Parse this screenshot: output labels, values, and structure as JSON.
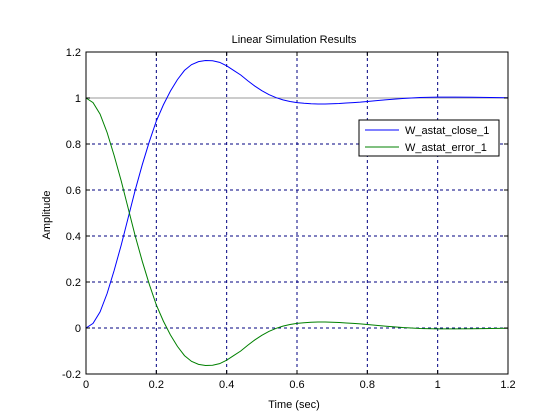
{
  "chart_data": {
    "type": "line",
    "title": "Linear Simulation Results",
    "xlabel": "Time (sec)",
    "ylabel": "Amplitude",
    "xlim": [
      0,
      1.2
    ],
    "ylim": [
      -0.2,
      1.2
    ],
    "xticks": [
      0,
      0.2,
      0.4,
      0.6,
      0.8,
      1,
      1.2
    ],
    "xtick_labels": [
      "0",
      "0.2",
      "0.4",
      "0.6",
      "0.8",
      "1",
      "1.2"
    ],
    "yticks": [
      -0.2,
      0,
      0.2,
      0.4,
      0.6,
      0.8,
      1,
      1.2
    ],
    "ytick_labels": [
      "-0.2",
      "0",
      "0.2",
      "0.4",
      "0.6",
      "0.8",
      "1",
      "1.2"
    ],
    "grid": true,
    "grid_style": "dashed",
    "legend_position": "top-right",
    "reference_line": {
      "y": 1,
      "color": "#999999"
    },
    "series": [
      {
        "name": "W_astat_close_1",
        "color": "#0000ff",
        "x": [
          0,
          0.02,
          0.04,
          0.06,
          0.08,
          0.1,
          0.12,
          0.14,
          0.16,
          0.18,
          0.2,
          0.22,
          0.24,
          0.26,
          0.28,
          0.3,
          0.32,
          0.34,
          0.36,
          0.38,
          0.4,
          0.42,
          0.44,
          0.46,
          0.48,
          0.5,
          0.52,
          0.54,
          0.56,
          0.58,
          0.6,
          0.62,
          0.64,
          0.66,
          0.68,
          0.7,
          0.72,
          0.74,
          0.76,
          0.78,
          0.8,
          0.85,
          0.9,
          0.95,
          1.0,
          1.05,
          1.1,
          1.15,
          1.2
        ],
        "y": [
          0,
          0.02,
          0.07,
          0.15,
          0.25,
          0.36,
          0.48,
          0.6,
          0.71,
          0.81,
          0.9,
          0.97,
          1.03,
          1.08,
          1.12,
          1.145,
          1.158,
          1.163,
          1.162,
          1.155,
          1.14,
          1.12,
          1.1,
          1.075,
          1.052,
          1.032,
          1.015,
          1.002,
          0.992,
          0.985,
          0.98,
          0.977,
          0.975,
          0.974,
          0.974,
          0.975,
          0.976,
          0.978,
          0.98,
          0.982,
          0.985,
          0.992,
          0.998,
          1.002,
          1.004,
          1.004,
          1.003,
          1.002,
          1.001
        ]
      },
      {
        "name": "W_astat_error_1",
        "color": "#008000",
        "x": [
          0,
          0.02,
          0.04,
          0.06,
          0.08,
          0.1,
          0.12,
          0.14,
          0.16,
          0.18,
          0.2,
          0.22,
          0.24,
          0.26,
          0.28,
          0.3,
          0.32,
          0.34,
          0.36,
          0.38,
          0.4,
          0.42,
          0.44,
          0.46,
          0.48,
          0.5,
          0.52,
          0.54,
          0.56,
          0.58,
          0.6,
          0.62,
          0.64,
          0.66,
          0.68,
          0.7,
          0.72,
          0.74,
          0.76,
          0.78,
          0.8,
          0.85,
          0.9,
          0.95,
          1.0,
          1.05,
          1.1,
          1.15,
          1.2
        ],
        "y": [
          1,
          0.98,
          0.93,
          0.85,
          0.75,
          0.64,
          0.52,
          0.4,
          0.29,
          0.19,
          0.1,
          0.03,
          -0.03,
          -0.08,
          -0.12,
          -0.145,
          -0.158,
          -0.163,
          -0.162,
          -0.155,
          -0.14,
          -0.12,
          -0.1,
          -0.075,
          -0.052,
          -0.032,
          -0.015,
          -0.002,
          0.008,
          0.015,
          0.02,
          0.023,
          0.025,
          0.026,
          0.026,
          0.025,
          0.024,
          0.022,
          0.02,
          0.018,
          0.015,
          0.008,
          0.002,
          -0.002,
          -0.004,
          -0.004,
          -0.003,
          -0.002,
          -0.001
        ]
      }
    ]
  }
}
